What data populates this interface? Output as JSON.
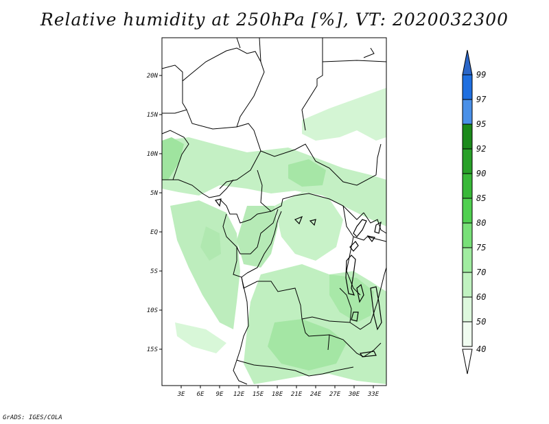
{
  "title": "Relative humidity at 250hPa [%], VT: 2020032300",
  "credit": "GrADS: IGES/COLA",
  "lat_labels": [
    "20N",
    "15N",
    "10N",
    "5N",
    "EQ",
    "5S",
    "10S",
    "15S"
  ],
  "lon_labels": [
    "3E",
    "6E",
    "9E",
    "12E",
    "15E",
    "18E",
    "21E",
    "24E",
    "27E",
    "30E",
    "33E"
  ],
  "colorbar": {
    "levels": [
      "99",
      "97",
      "95",
      "92",
      "90",
      "85",
      "80",
      "75",
      "70",
      "60",
      "50",
      "40"
    ],
    "colors": [
      "#3c78d8",
      "#1f6fe0",
      "#4a90e8",
      "#1b8a1b",
      "#28a028",
      "#38b838",
      "#50d050",
      "#78e078",
      "#a0eca0",
      "#c0f2c0",
      "#ddf8dd",
      "#f0fcf0"
    ],
    "top_arrow_color": "#2a66c8",
    "bottom_arrow_color": "#ffffff"
  }
}
